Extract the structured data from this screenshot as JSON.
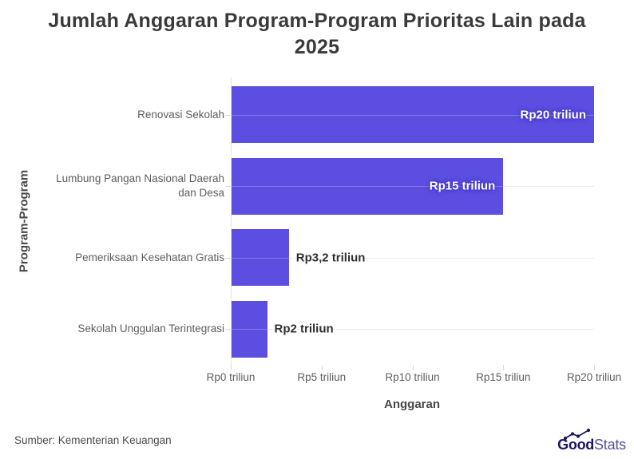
{
  "title": "Jumlah Anggaran Program-Program Prioritas Lain pada\n2025",
  "source": "Sumber: Kementerian Keuangan",
  "logo": {
    "bold": "Good",
    "light": "Stats",
    "navy": "#1b1566",
    "light_color": "#54509b"
  },
  "chart_data": {
    "type": "bar",
    "orientation": "horizontal",
    "title": "Jumlah Anggaran Program-Program Prioritas Lain pada 2025",
    "xlabel": "Anggaran",
    "ylabel": "Program-Program",
    "categories": [
      "Renovasi Sekolah",
      "Lumbung Pangan Nasional Daerah dan Desa",
      "Pemeriksaan Kesehatan Gratis",
      "Sekolah Unggulan Terintegrasi"
    ],
    "values": [
      20,
      15,
      3.2,
      2
    ],
    "value_labels": [
      "Rp20 triliun",
      "Rp15 triliun",
      "Rp3,2 triliun",
      "Rp2 triliun"
    ],
    "xlim": [
      0,
      20
    ],
    "x_ticks": {
      "values": [
        0,
        5,
        10,
        15,
        20
      ],
      "labels": [
        "Rp0 triliun",
        "Rp5 triliun",
        "Rp10 triliun",
        "Rp15 triliun",
        "Rp20 triliun"
      ]
    },
    "legend": "none",
    "grid": "horizontal category gridlines + zero line",
    "colors": {
      "bar": "#5b4ee1",
      "gridline": "#ebebeb",
      "zero_line": "#e3e3e3",
      "tick": "#d8d8d8"
    }
  }
}
